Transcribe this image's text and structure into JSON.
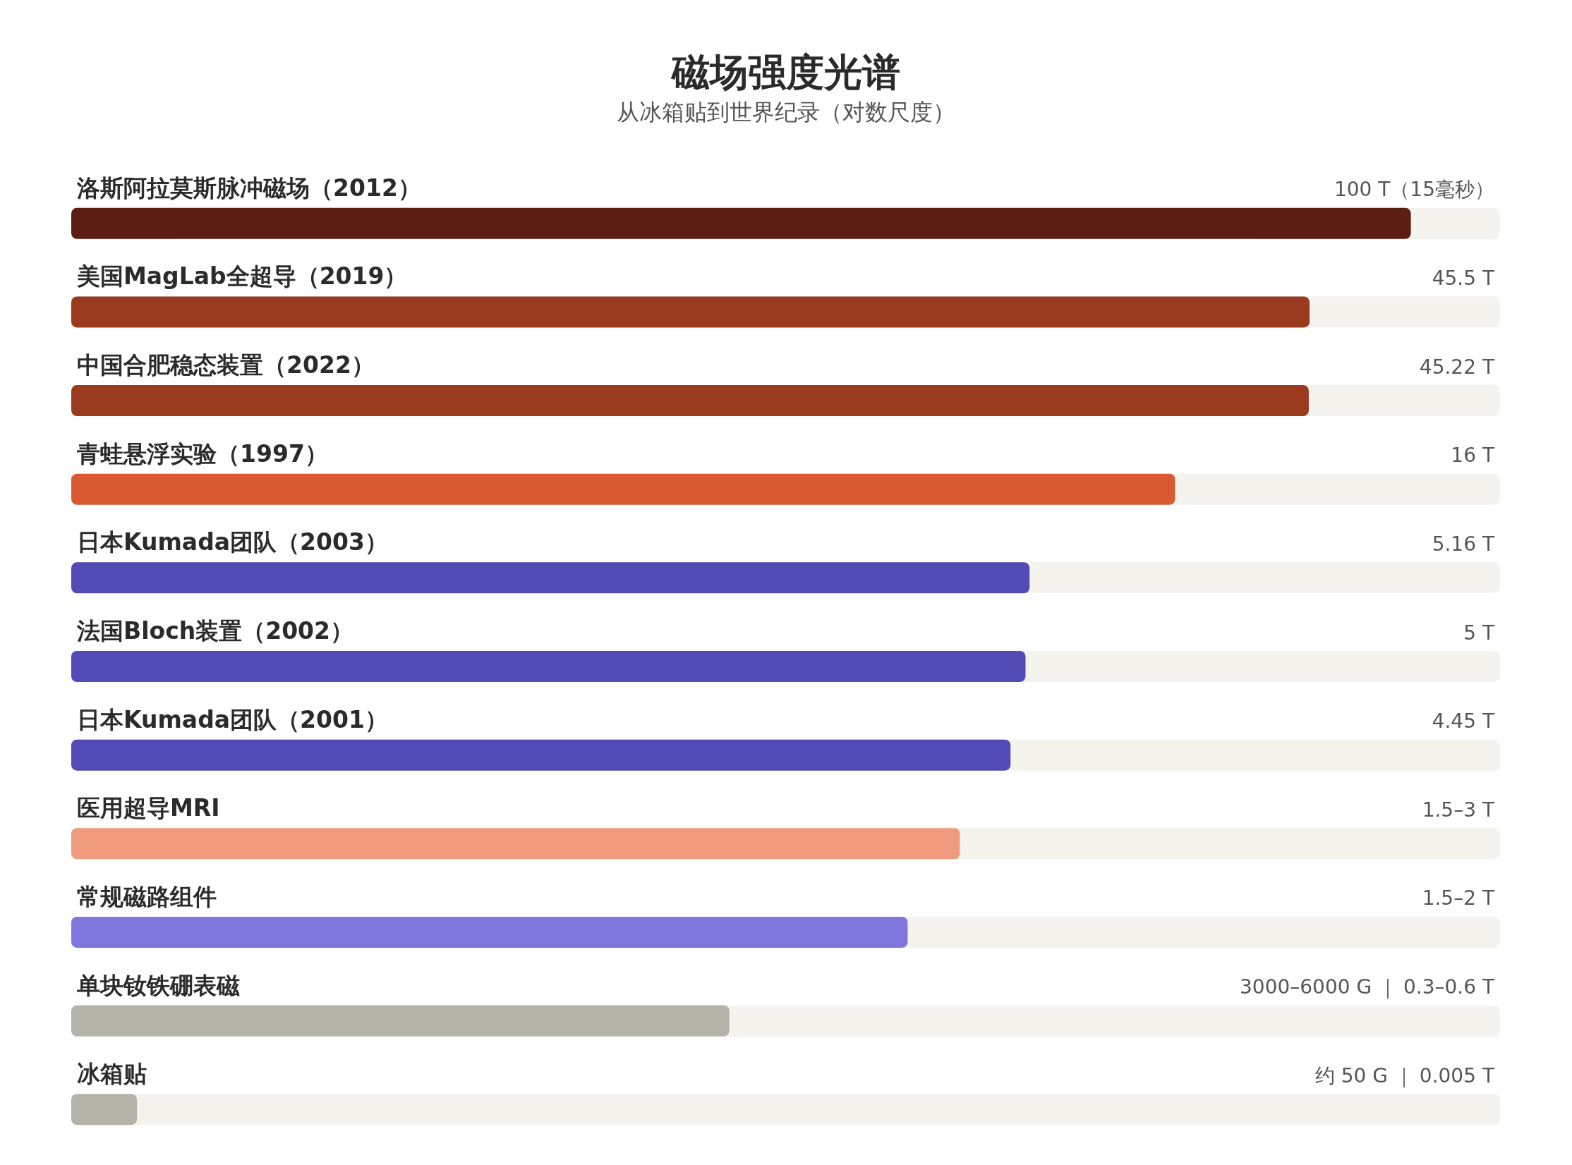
{
  "chart_data": {
    "type": "bar",
    "orientation": "horizontal",
    "title": "磁场强度光谱",
    "subtitle": "从冰箱贴到世界纪录（对数尺度）",
    "categories": [
      "洛斯阿拉莫斯脉冲磁场（2012）",
      "美国MagLab全超导（2019）",
      "中国合肥稳态装置（2022）",
      "青蛙悬浮实验（1997）",
      "日本Kumada团队（2003）",
      "法国Bloch装置（2002）",
      "日本Kumada团队（2001）",
      "医用超导MRI",
      "常规磁路组件",
      "单块钕铁硼表磁",
      "冰箱贴"
    ],
    "values": [
      100,
      45.5,
      45.22,
      16,
      5.16,
      5,
      4.45,
      3,
      2,
      0.5,
      0.005
    ],
    "value_labels": [
      "100 T（15毫秒）",
      "45.5 T",
      "45.22 T",
      "16 T",
      "5.16 T",
      "5 T",
      "4.45 T",
      "1.5–3 T",
      "1.5–2 T",
      "3000–6000 G ｜ 0.3–0.6 T",
      "约 50 G ｜ 0.005 T"
    ],
    "colors": [
      "#5c1d12",
      "#9a3a1f",
      "#9a3a1f",
      "#d95a30",
      "#534bb5",
      "#534bb5",
      "#534bb5",
      "#ef9a7c",
      "#7f77dd",
      "#b4b2a9",
      "#b4b2a9"
    ],
    "log": "x",
    "xlim": [
      0.003,
      200
    ]
  }
}
